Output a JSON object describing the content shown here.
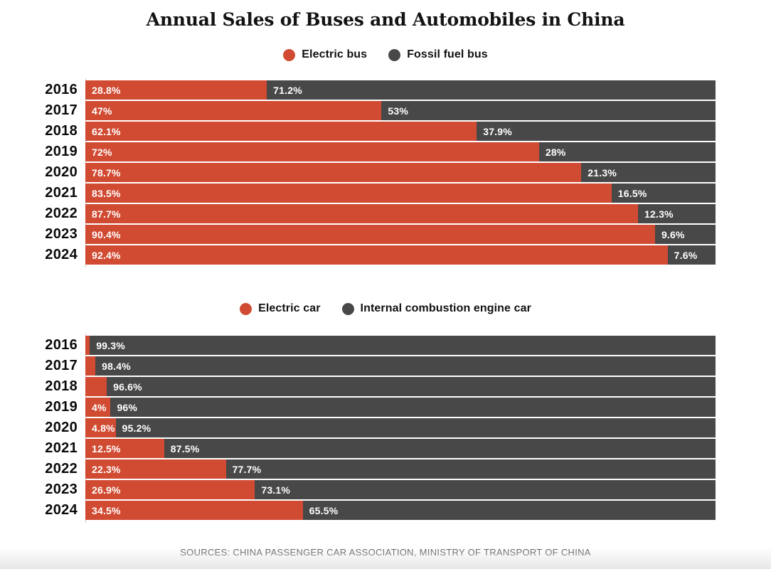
{
  "title": "Annual Sales of Buses and Automobiles in China",
  "source_line": "SOURCES: CHINA PASSENGER CAR ASSOCIATION, MINISTRY OF TRANSPORT OF CHINA",
  "colors": {
    "electric": "#d14b33",
    "fossil": "#484848",
    "year_text": "#0a0a0a",
    "bar_label_text": "#ffffff",
    "source_text": "#595959"
  },
  "chart_data": [
    {
      "type": "bar",
      "orientation": "horizontal",
      "stacked": true,
      "unit": "percent",
      "xlim": [
        0,
        100
      ],
      "legend_position": "top-center",
      "categories": [
        "2016",
        "2017",
        "2018",
        "2019",
        "2020",
        "2021",
        "2022",
        "2023",
        "2024"
      ],
      "series": [
        {
          "name": "Electric bus",
          "color": "#d14b33",
          "values": [
            28.8,
            47,
            62.1,
            72,
            78.7,
            83.5,
            87.7,
            90.4,
            92.4
          ],
          "labels": [
            "28.8%",
            "47%",
            "62.1%",
            "72%",
            "78.7%",
            "83.5%",
            "87.7%",
            "90.4%",
            "92.4%"
          ]
        },
        {
          "name": "Fossil fuel bus",
          "color": "#484848",
          "values": [
            71.2,
            53,
            37.9,
            28,
            21.3,
            16.5,
            12.3,
            9.6,
            7.6
          ],
          "labels": [
            "71.2%",
            "53%",
            "37.9%",
            "28%",
            "21.3%",
            "16.5%",
            "12.3%",
            "9.6%",
            "7.6%"
          ]
        }
      ]
    },
    {
      "type": "bar",
      "orientation": "horizontal",
      "stacked": true,
      "unit": "percent",
      "xlim": [
        0,
        100
      ],
      "legend_position": "top-center",
      "categories": [
        "2016",
        "2017",
        "2018",
        "2019",
        "2020",
        "2021",
        "2022",
        "2023",
        "2024"
      ],
      "series": [
        {
          "name": "Electric car",
          "color": "#d14b33",
          "values": [
            0.7,
            1.6,
            3.4,
            4,
            4.8,
            12.5,
            22.3,
            26.9,
            34.5
          ],
          "labels": [
            "",
            "",
            "",
            "4%",
            "4.8%",
            "12.5%",
            "22.3%",
            "26.9%",
            "34.5%"
          ]
        },
        {
          "name": "Internal combustion engine car",
          "color": "#484848",
          "values": [
            99.3,
            98.4,
            96.6,
            96,
            95.2,
            87.5,
            77.7,
            73.1,
            65.5
          ],
          "labels": [
            "99.3%",
            "98.4%",
            "96.6%",
            "96%",
            "95.2%",
            "87.5%",
            "77.7%",
            "73.1%",
            "65.5%"
          ]
        }
      ]
    }
  ]
}
